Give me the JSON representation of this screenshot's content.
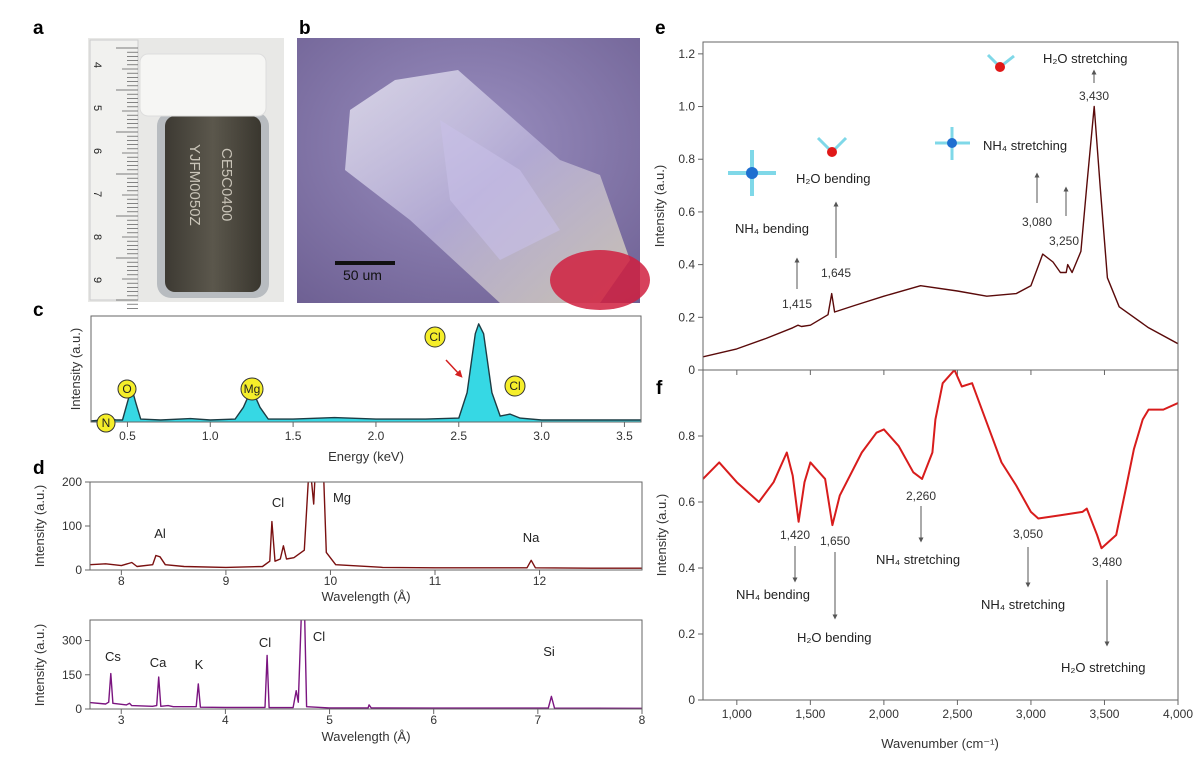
{
  "panel_labels": {
    "a": "a",
    "b": "b",
    "c": "c",
    "d": "d",
    "e": "e",
    "f": "f"
  },
  "photo_a": {
    "ruler_numbers": [
      "4",
      "5",
      "6",
      "7",
      "8",
      "9"
    ],
    "vial_text": [
      "CE5C0400",
      "YJFM0050Z"
    ]
  },
  "photo_b": {
    "scale_bar": "50 um"
  },
  "colors": {
    "eds_fill": "#36d8e4",
    "eds_line": "#1d3c44",
    "xrf_top": "#7a1010",
    "xrf_bottom": "#7b1580",
    "raman": "#5a0a0a",
    "ir": "#d81c1c",
    "element_badge": "#f5ee2a"
  },
  "chart_data": [
    {
      "id": "c",
      "type": "area",
      "xlabel": "Energy (keV)",
      "ylabel": "Intensity (a.u.)",
      "xlim": [
        0.28,
        3.6
      ],
      "ylim": [
        0,
        1.08
      ],
      "xticks": [
        0.5,
        1.0,
        1.5,
        2.0,
        2.5,
        3.0,
        3.5
      ],
      "xtick_labels": [
        "0.5",
        "1.0",
        "1.5",
        "2.0",
        "2.5",
        "3.0",
        "3.5"
      ],
      "grid": false,
      "points": [
        [
          0.28,
          0.01
        ],
        [
          0.35,
          0.02
        ],
        [
          0.39,
          0.05
        ],
        [
          0.43,
          0.02
        ],
        [
          0.47,
          0.02
        ],
        [
          0.5,
          0.2
        ],
        [
          0.525,
          0.35
        ],
        [
          0.55,
          0.2
        ],
        [
          0.58,
          0.03
        ],
        [
          0.7,
          0.02
        ],
        [
          0.88,
          0.035
        ],
        [
          1.0,
          0.02
        ],
        [
          1.15,
          0.03
        ],
        [
          1.2,
          0.15
        ],
        [
          1.25,
          0.34
        ],
        [
          1.3,
          0.15
        ],
        [
          1.35,
          0.03
        ],
        [
          1.5,
          0.03
        ],
        [
          1.75,
          0.045
        ],
        [
          2.0,
          0.03
        ],
        [
          2.3,
          0.03
        ],
        [
          2.5,
          0.04
        ],
        [
          2.55,
          0.3
        ],
        [
          2.6,
          0.9
        ],
        [
          2.62,
          1.0
        ],
        [
          2.65,
          0.9
        ],
        [
          2.7,
          0.3
        ],
        [
          2.75,
          0.06
        ],
        [
          2.81,
          0.08
        ],
        [
          2.87,
          0.04
        ],
        [
          3.0,
          0.02
        ],
        [
          3.3,
          0.02
        ],
        [
          3.6,
          0.02
        ]
      ],
      "annotations": [
        {
          "text": "N",
          "x": 0.39
        },
        {
          "text": "O",
          "x": 0.525
        },
        {
          "text": "Mg",
          "x": 1.25
        },
        {
          "text": "Cl",
          "x": 2.62
        },
        {
          "text": "Cl",
          "x": 2.81
        }
      ]
    },
    {
      "id": "d-top",
      "type": "line",
      "xlabel": "Wavelength (Å)",
      "ylabel": "Intensity (a.u.)",
      "xlim": [
        7.7,
        12.98
      ],
      "ylim": [
        0,
        200
      ],
      "xticks": [
        8,
        9,
        10,
        11,
        12
      ],
      "xtick_labels": [
        "8",
        "9",
        "10",
        "11",
        "12"
      ],
      "yticks": [
        0,
        100,
        200
      ],
      "ytick_labels": [
        "0",
        "100",
        "200"
      ],
      "points": [
        [
          7.7,
          12
        ],
        [
          7.85,
          14
        ],
        [
          8.0,
          10
        ],
        [
          8.1,
          17
        ],
        [
          8.15,
          8
        ],
        [
          8.3,
          12
        ],
        [
          8.33,
          33
        ],
        [
          8.37,
          30
        ],
        [
          8.42,
          12
        ],
        [
          8.6,
          8
        ],
        [
          9.0,
          6
        ],
        [
          9.35,
          8
        ],
        [
          9.42,
          20
        ],
        [
          9.44,
          110
        ],
        [
          9.47,
          20
        ],
        [
          9.52,
          25
        ],
        [
          9.55,
          55
        ],
        [
          9.58,
          25
        ],
        [
          9.65,
          28
        ],
        [
          9.75,
          45
        ],
        [
          9.8,
          250
        ],
        [
          9.84,
          150
        ],
        [
          9.86,
          250
        ],
        [
          9.93,
          250
        ],
        [
          9.96,
          40
        ],
        [
          10.05,
          12
        ],
        [
          10.5,
          6
        ],
        [
          11.0,
          5
        ],
        [
          11.5,
          5
        ],
        [
          11.88,
          5
        ],
        [
          11.92,
          22
        ],
        [
          11.96,
          5
        ],
        [
          12.5,
          4
        ],
        [
          12.98,
          4
        ]
      ],
      "annotations": [
        {
          "text": "Al",
          "x": 8.35
        },
        {
          "text": "Cl",
          "x": 9.44
        },
        {
          "text": "Mg",
          "x": 9.9
        },
        {
          "text": "Na",
          "x": 11.92
        }
      ]
    },
    {
      "id": "d-bottom",
      "type": "line",
      "xlabel": "Wavelength (Å)",
      "ylabel": "Intensity (a.u.)",
      "xlim": [
        2.7,
        8
      ],
      "ylim": [
        0,
        390
      ],
      "xticks": [
        3,
        4,
        5,
        6,
        7,
        8
      ],
      "xtick_labels": [
        "3",
        "4",
        "5",
        "6",
        "7",
        "8"
      ],
      "yticks": [
        0,
        150,
        300
      ],
      "ytick_labels": [
        "0",
        "150",
        "300"
      ],
      "points": [
        [
          2.7,
          28
        ],
        [
          2.85,
          22
        ],
        [
          2.88,
          30
        ],
        [
          2.9,
          155
        ],
        [
          2.92,
          25
        ],
        [
          3.05,
          18
        ],
        [
          3.08,
          25
        ],
        [
          3.1,
          15
        ],
        [
          3.3,
          12
        ],
        [
          3.34,
          15
        ],
        [
          3.36,
          140
        ],
        [
          3.38,
          12
        ],
        [
          3.45,
          15
        ],
        [
          3.5,
          10
        ],
        [
          3.72,
          10
        ],
        [
          3.74,
          110
        ],
        [
          3.76,
          8
        ],
        [
          4.0,
          7
        ],
        [
          4.38,
          7
        ],
        [
          4.4,
          235
        ],
        [
          4.42,
          6
        ],
        [
          4.65,
          6
        ],
        [
          4.68,
          80
        ],
        [
          4.7,
          30
        ],
        [
          4.73,
          420
        ],
        [
          4.76,
          420
        ],
        [
          4.78,
          10
        ],
        [
          5.0,
          5
        ],
        [
          5.37,
          5
        ],
        [
          5.38,
          18
        ],
        [
          5.4,
          5
        ],
        [
          6.0,
          4
        ],
        [
          7.1,
          4
        ],
        [
          7.13,
          55
        ],
        [
          7.16,
          4
        ],
        [
          8.0,
          3
        ]
      ],
      "annotations": [
        {
          "text": "Cs",
          "x": 2.9
        },
        {
          "text": "Ca",
          "x": 3.36
        },
        {
          "text": "K",
          "x": 3.74
        },
        {
          "text": "Cl",
          "x": 4.4
        },
        {
          "text": "Cl",
          "x": 4.74
        },
        {
          "text": "Si",
          "x": 7.13
        }
      ]
    },
    {
      "id": "e",
      "type": "line",
      "ylabel": "Intensity (a.u.)",
      "xlim": [
        770,
        4000
      ],
      "ylim": [
        0,
        1.245
      ],
      "xticks": [
        1000,
        1500,
        2000,
        2500,
        3000,
        3500,
        4000
      ],
      "yticks": [
        0,
        0.2,
        0.4,
        0.6,
        0.8,
        1.0,
        1.2
      ],
      "ytick_labels": [
        "0",
        "0.2",
        "0.4",
        "0.6",
        "0.8",
        "1.0",
        "1.2"
      ],
      "points": [
        [
          770,
          0.05
        ],
        [
          1000,
          0.08
        ],
        [
          1200,
          0.12
        ],
        [
          1380,
          0.16
        ],
        [
          1415,
          0.17
        ],
        [
          1440,
          0.165
        ],
        [
          1500,
          0.17
        ],
        [
          1620,
          0.21
        ],
        [
          1645,
          0.29
        ],
        [
          1665,
          0.22
        ],
        [
          1800,
          0.245
        ],
        [
          2000,
          0.28
        ],
        [
          2250,
          0.32
        ],
        [
          2500,
          0.3
        ],
        [
          2700,
          0.28
        ],
        [
          2900,
          0.29
        ],
        [
          3000,
          0.32
        ],
        [
          3060,
          0.41
        ],
        [
          3080,
          0.44
        ],
        [
          3150,
          0.41
        ],
        [
          3200,
          0.37
        ],
        [
          3240,
          0.37
        ],
        [
          3250,
          0.4
        ],
        [
          3280,
          0.37
        ],
        [
          3340,
          0.45
        ],
        [
          3380,
          0.7
        ],
        [
          3430,
          1.0
        ],
        [
          3470,
          0.7
        ],
        [
          3520,
          0.35
        ],
        [
          3600,
          0.24
        ],
        [
          3800,
          0.16
        ],
        [
          4000,
          0.1
        ]
      ],
      "annotations": {
        "h2o_stretch": "H₂O stretching",
        "n3430": "3,430",
        "nh4_bend": "NH₄ bending",
        "h2o_bend": "H₂O bending",
        "n1415": "1,415",
        "n1645": "1,645",
        "nh4_stretch": "NH₄ stretching",
        "n3080": "3,080",
        "n3250": "3,250"
      }
    },
    {
      "id": "f",
      "type": "line",
      "xlabel": "Wavenumber (cm⁻¹)",
      "ylabel": "Intensity (a.u.)",
      "xlim": [
        770,
        4000
      ],
      "ylim": [
        0,
        1.0
      ],
      "xticks": [
        1000,
        1500,
        2000,
        2500,
        3000,
        3500,
        4000
      ],
      "xtick_labels": [
        "1,000",
        "1,500",
        "2,000",
        "2,500",
        "3,000",
        "3,500",
        "4,000"
      ],
      "yticks": [
        0,
        0.2,
        0.4,
        0.6,
        0.8
      ],
      "ytick_labels": [
        "0",
        "0.2",
        "0.4",
        "0.6",
        "0.8"
      ],
      "points": [
        [
          770,
          0.67
        ],
        [
          880,
          0.72
        ],
        [
          1000,
          0.66
        ],
        [
          1150,
          0.6
        ],
        [
          1250,
          0.66
        ],
        [
          1340,
          0.75
        ],
        [
          1380,
          0.68
        ],
        [
          1420,
          0.54
        ],
        [
          1460,
          0.66
        ],
        [
          1500,
          0.72
        ],
        [
          1600,
          0.67
        ],
        [
          1650,
          0.53
        ],
        [
          1700,
          0.62
        ],
        [
          1850,
          0.75
        ],
        [
          1950,
          0.81
        ],
        [
          2000,
          0.82
        ],
        [
          2100,
          0.77
        ],
        [
          2200,
          0.69
        ],
        [
          2260,
          0.67
        ],
        [
          2330,
          0.75
        ],
        [
          2350,
          0.85
        ],
        [
          2400,
          0.96
        ],
        [
          2480,
          1.0
        ],
        [
          2530,
          0.95
        ],
        [
          2600,
          0.96
        ],
        [
          2700,
          0.84
        ],
        [
          2800,
          0.72
        ],
        [
          2900,
          0.65
        ],
        [
          3000,
          0.57
        ],
        [
          3050,
          0.55
        ],
        [
          3200,
          0.56
        ],
        [
          3350,
          0.57
        ],
        [
          3380,
          0.58
        ],
        [
          3450,
          0.5
        ],
        [
          3480,
          0.46
        ],
        [
          3580,
          0.5
        ],
        [
          3650,
          0.65
        ],
        [
          3700,
          0.76
        ],
        [
          3760,
          0.85
        ],
        [
          3800,
          0.88
        ],
        [
          3900,
          0.88
        ],
        [
          4000,
          0.9
        ]
      ],
      "annotations": {
        "n1420": "1,420",
        "n1650": "1,650",
        "nh4_bend": "NH₄ bending",
        "h2o_bend": "H₂O bending",
        "n2260": "2,260",
        "nh4_stretch1": "NH₄ stretching",
        "n3050": "3,050",
        "nh4_stretch2": "NH₄ stretching",
        "n3480": "3,480",
        "h2o_stretch": "H₂O stretching"
      }
    }
  ]
}
